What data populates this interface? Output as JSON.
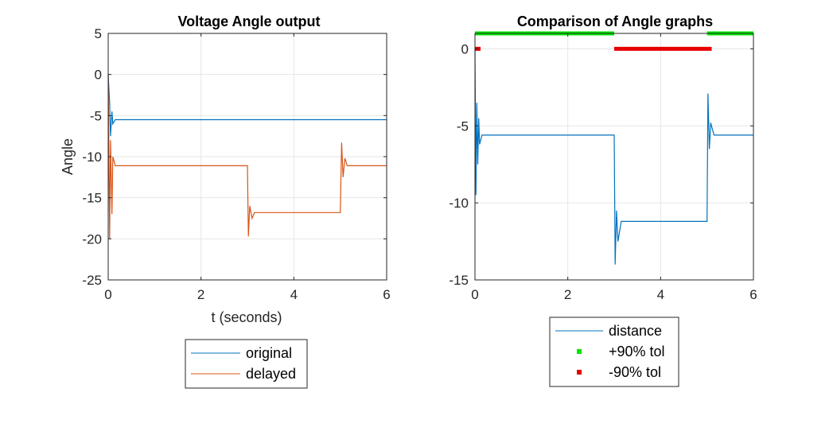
{
  "chart_data": [
    {
      "type": "line",
      "title": "Voltage Angle output",
      "xlabel": "t (seconds)",
      "ylabel": "Angle",
      "xlim": [
        0,
        6
      ],
      "ylim": [
        -25,
        5
      ],
      "xticks": [
        "0",
        "2",
        "4",
        "6"
      ],
      "yticks": [
        "5",
        "0",
        "-5",
        "-10",
        "-15",
        "-20",
        "-25"
      ],
      "grid": true,
      "legend_position": "below",
      "series": [
        {
          "name": "original",
          "color": "#0072BD",
          "x": [
            0,
            0.03,
            0.05,
            0.08,
            0.1,
            0.15,
            6
          ],
          "y": [
            0,
            -3.5,
            -7.5,
            -4.5,
            -6,
            -5.5,
            -5.5
          ]
        },
        {
          "name": "delayed",
          "color": "#D95319",
          "x": [
            0,
            0.03,
            0.05,
            0.08,
            0.1,
            0.15,
            3.0,
            3.02,
            3.05,
            3.1,
            3.15,
            5.0,
            5.03,
            5.06,
            5.1,
            5.15,
            6
          ],
          "y": [
            0,
            -20,
            -8,
            -17,
            -10,
            -11.1,
            -11.1,
            -19.7,
            -16,
            -17.5,
            -16.8,
            -16.8,
            -8.3,
            -12.5,
            -10.2,
            -11.1,
            -11.1
          ]
        }
      ]
    },
    {
      "type": "line",
      "title": "Comparison of Angle graphs",
      "xlabel": "",
      "ylabel": "",
      "xlim": [
        0,
        6
      ],
      "ylim": [
        -15,
        1
      ],
      "xticks": [
        "0",
        "2",
        "4",
        "6"
      ],
      "yticks": [
        "0",
        "-5",
        "-10",
        "-15"
      ],
      "grid": true,
      "legend_position": "below",
      "series": [
        {
          "name": "distance",
          "color": "#0072BD",
          "x": [
            0,
            0.02,
            0.04,
            0.06,
            0.08,
            0.1,
            0.15,
            3.0,
            3.02,
            3.05,
            3.08,
            3.15,
            5.0,
            5.02,
            5.05,
            5.08,
            5.15,
            6
          ],
          "y": [
            0,
            -9.5,
            -3.5,
            -7.5,
            -4.5,
            -6.2,
            -5.6,
            -5.6,
            -14,
            -10.5,
            -12.5,
            -11.2,
            -11.2,
            -2.9,
            -6.5,
            -4.8,
            -5.6,
            -5.6
          ]
        },
        {
          "name": "+90% tol",
          "color": "#00E600",
          "segments": [
            [
              0,
              3.0
            ],
            [
              5.0,
              6.0
            ]
          ],
          "y": 1
        },
        {
          "name": "-90% tol",
          "color": "#E60000",
          "segments": [
            [
              0,
              0.12
            ],
            [
              3.0,
              5.1
            ]
          ],
          "y": 0
        }
      ]
    }
  ]
}
